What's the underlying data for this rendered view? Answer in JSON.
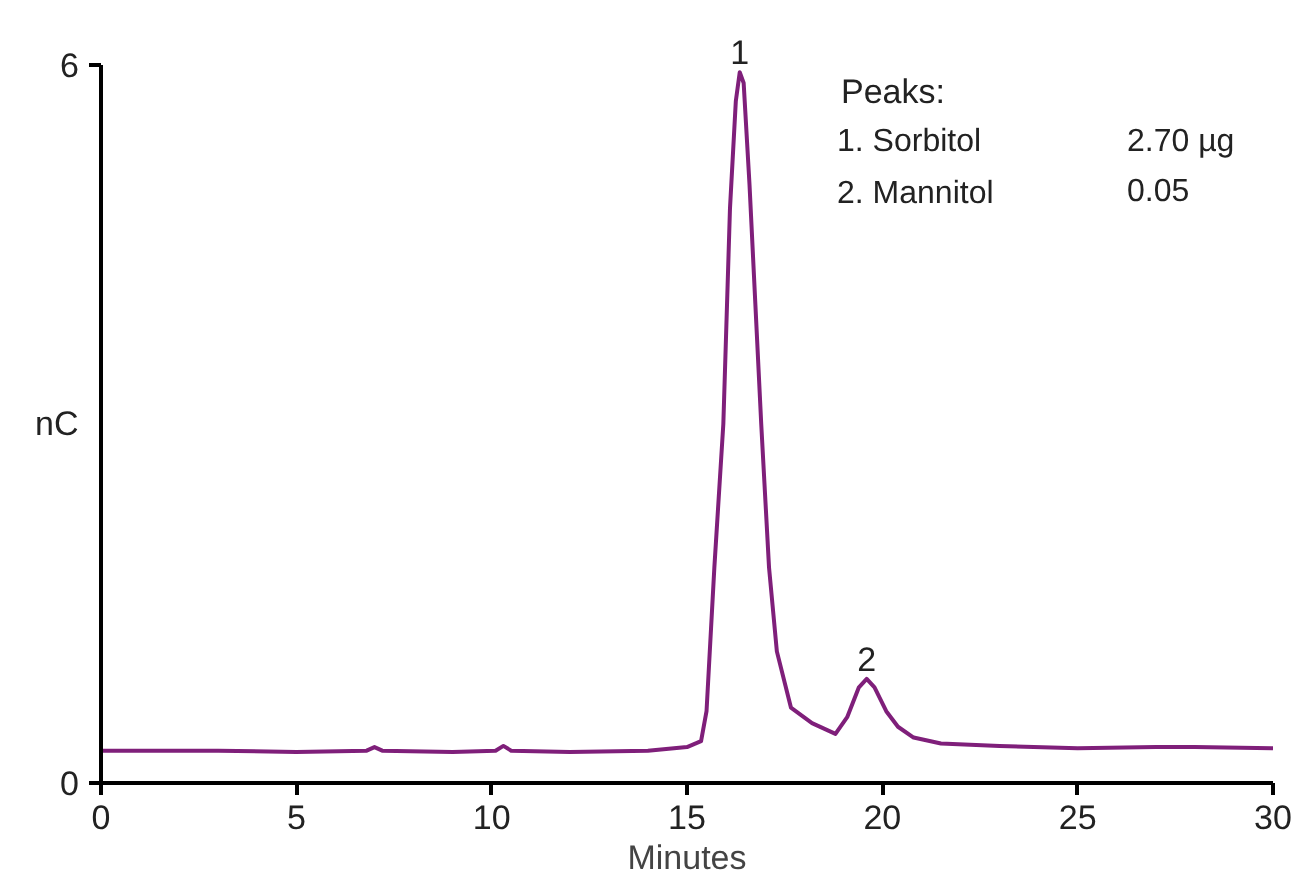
{
  "chart_data": {
    "type": "line",
    "xlabel": "Minutes",
    "ylabel": "nC",
    "x": [
      0,
      3,
      5,
      6.8,
      7.0,
      7.2,
      9,
      10.1,
      10.3,
      10.5,
      12,
      14,
      15,
      15.36,
      15.5,
      15.7,
      15.93,
      16.1,
      16.25,
      16.35,
      16.45,
      16.6,
      16.75,
      16.9,
      17.1,
      17.3,
      17.66,
      18.2,
      18.8,
      19.1,
      19.4,
      19.6,
      19.8,
      20.1,
      20.4,
      20.8,
      21.5,
      23,
      25,
      27,
      28,
      30
    ],
    "series": [
      {
        "color": "#7f1f7a",
        "values": [
          0.27,
          0.27,
          0.26,
          0.27,
          0.3,
          0.27,
          0.26,
          0.27,
          0.31,
          0.27,
          0.26,
          0.27,
          0.3,
          0.35,
          0.6,
          1.8,
          3.0,
          4.8,
          5.7,
          5.94,
          5.85,
          5.0,
          4.0,
          3.0,
          1.8,
          1.1,
          0.63,
          0.5,
          0.41,
          0.55,
          0.8,
          0.87,
          0.8,
          0.6,
          0.47,
          0.38,
          0.33,
          0.31,
          0.29,
          0.3,
          0.3,
          0.29
        ]
      }
    ],
    "xlim": [
      0,
      30
    ],
    "xticks": [
      0,
      5,
      10,
      15,
      20,
      25,
      30
    ],
    "ylim": [
      0,
      6
    ],
    "yticks": [
      0,
      6
    ],
    "grid": false,
    "marker": "none",
    "line_style": "solid",
    "annotations": [
      {
        "text": "1",
        "x": 16.35,
        "y": 5.94
      },
      {
        "text": "2",
        "x": 19.6,
        "y": 0.87
      },
      "Peaks:",
      "1.  Sorbitol",
      "2.70 µg",
      "2.  Mannitol",
      "0.05"
    ]
  }
}
